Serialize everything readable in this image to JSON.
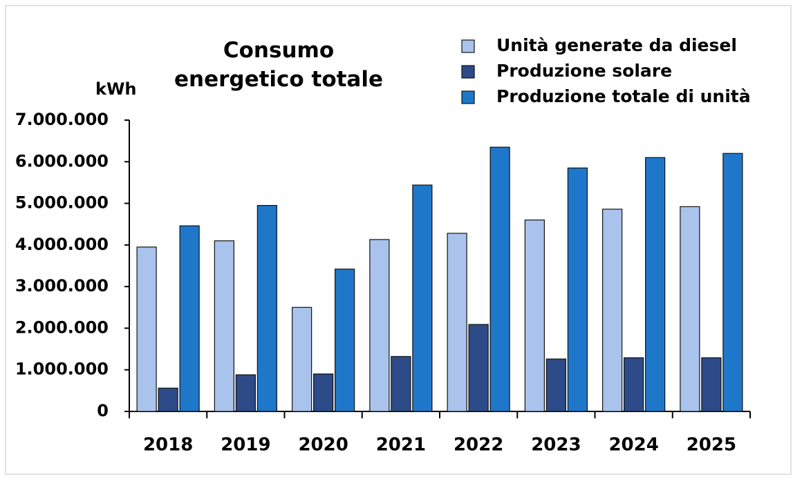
{
  "chart_data": {
    "type": "bar",
    "title": "Consumo energetico totale",
    "y_label": "kWh",
    "categories": [
      "2018",
      "2019",
      "2020",
      "2021",
      "2022",
      "2023",
      "2024",
      "2025"
    ],
    "series": [
      {
        "name": "Unità generate da diesel",
        "color": "#a9c3ec",
        "values": [
          3950000,
          4100000,
          2500000,
          4130000,
          4280000,
          4600000,
          4860000,
          4920000
        ]
      },
      {
        "name": "Produzione solare",
        "color": "#2c4b88",
        "values": [
          560000,
          880000,
          900000,
          1320000,
          2090000,
          1260000,
          1290000,
          1290000
        ]
      },
      {
        "name": "Produzione totale di unità",
        "color": "#1f77c9",
        "values": [
          4460000,
          4950000,
          3420000,
          5440000,
          6350000,
          5850000,
          6100000,
          6200000
        ]
      }
    ],
    "ylim": [
      0,
      7000000
    ],
    "yticks": [
      0,
      {
        "value": 1000000,
        "label": "1.000.000"
      },
      {
        "value": 2000000,
        "label": "2.000.000"
      },
      {
        "value": 3000000,
        "label": "3.000.000"
      },
      {
        "value": 4000000,
        "label": "4.000.000"
      },
      {
        "value": 5000000,
        "label": "5.000.000"
      },
      {
        "value": 6000000,
        "label": "6.000.000"
      },
      {
        "value": 7000000,
        "label": "7.000.000"
      }
    ],
    "grid": false,
    "legend": "top-right"
  }
}
